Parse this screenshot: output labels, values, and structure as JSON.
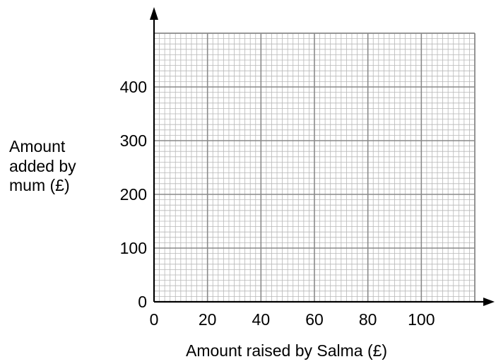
{
  "chart_data": {
    "type": "scatter",
    "title": "",
    "xlabel": "Amount raised by Salma (£)",
    "ylabel_lines": [
      "Amount",
      "added by",
      "mum (£)"
    ],
    "xlim": [
      0,
      120
    ],
    "ylim": [
      0,
      500
    ],
    "x_ticks": [
      0,
      20,
      40,
      60,
      80,
      100
    ],
    "y_ticks": [
      0,
      100,
      200,
      300,
      400
    ],
    "x_minor_step": 2,
    "y_minor_step": 10,
    "x_major_step": 20,
    "y_major_step": 100,
    "grid": true,
    "series": []
  }
}
